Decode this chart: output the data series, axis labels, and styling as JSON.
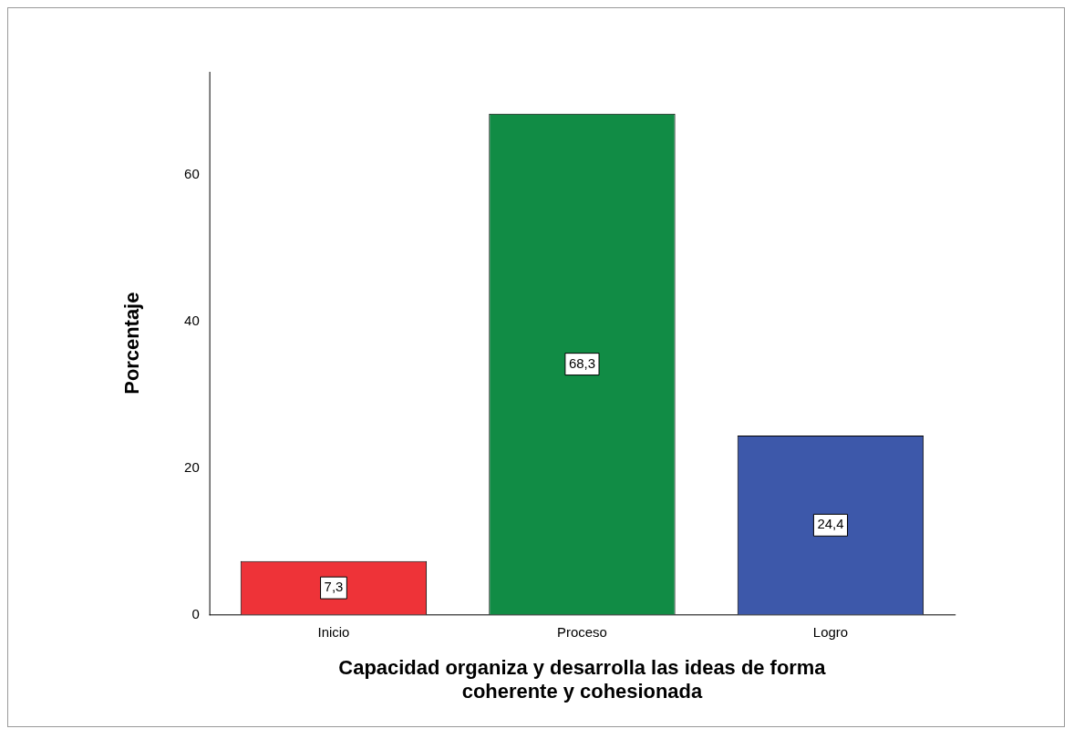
{
  "chart_data": {
    "type": "bar",
    "xlabel": "Capacidad organiza y desarrolla las ideas de forma coherente y cohesionada",
    "ylabel": "Porcentaje",
    "categories": [
      "Inicio",
      "Proceso",
      "Logro"
    ],
    "values": [
      7.3,
      68.3,
      24.4
    ],
    "value_labels": [
      "7,3",
      "68,3",
      "24,4"
    ],
    "colors": [
      "#ee3338",
      "#118c45",
      "#3d58aa"
    ],
    "ylim": [
      0,
      74
    ],
    "yticks": [
      0,
      20,
      40,
      60
    ],
    "grid": false,
    "legend": false
  }
}
